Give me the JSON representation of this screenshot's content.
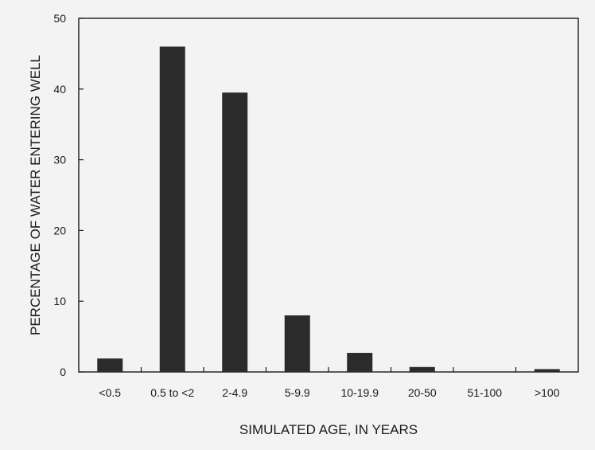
{
  "chart_data": {
    "type": "bar",
    "title": "",
    "xlabel": "SIMULATED AGE, IN YEARS",
    "ylabel": "PERCENTAGE OF WATER ENTERING WELL",
    "categories": [
      "<0.5",
      "0.5 to <2",
      "2-4.9",
      "5-9.9",
      "10-19.9",
      "20-50",
      "51-100",
      ">100"
    ],
    "values": [
      1.9,
      46.0,
      39.5,
      8.0,
      2.7,
      0.7,
      0.0,
      0.4
    ],
    "ylim": [
      0,
      50
    ],
    "yticks": [
      "0",
      "10",
      "20",
      "30",
      "40",
      "50"
    ],
    "grid": false,
    "legend": "none",
    "bar_color": "#2b2b2b"
  }
}
